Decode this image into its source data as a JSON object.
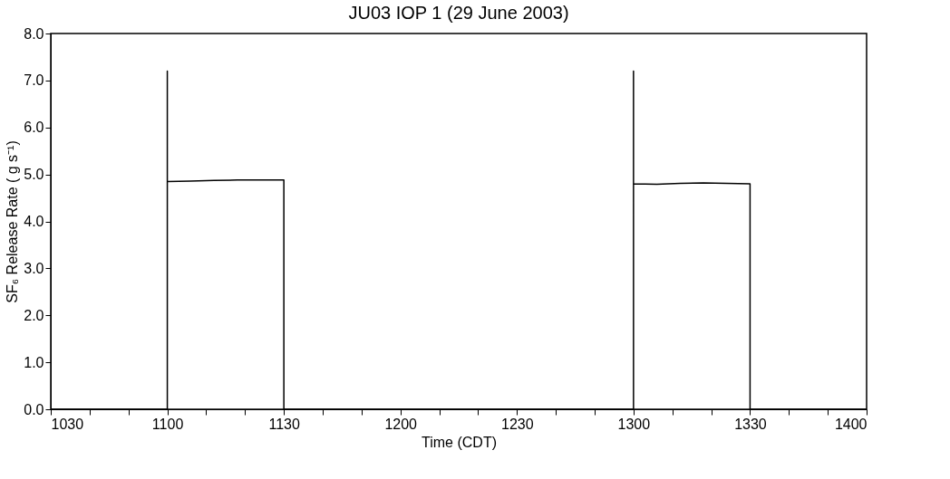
{
  "chart_data": {
    "type": "line",
    "title": "JU03 IOP 1 (29 June 2003)",
    "xlabel": "Time (CDT)",
    "ylabel": "SF₆ Release Rate ( g s⁻¹)",
    "x": [
      "2003-06-29T10:30",
      "2003-06-29T11:00",
      "2003-06-29T11:00",
      "2003-06-29T11:00",
      "2003-06-29T11:00",
      "2003-06-29T11:00",
      "2003-06-29T11:00",
      "2003-06-29T11:06",
      "2003-06-29T11:12",
      "2003-06-29T11:18",
      "2003-06-29T11:24",
      "2003-06-29T11:30",
      "2003-06-29T11:30",
      "2003-06-29T13:00",
      "2003-06-29T13:00",
      "2003-06-29T13:00",
      "2003-06-29T13:00",
      "2003-06-29T13:00",
      "2003-06-29T13:00",
      "2003-06-29T13:06",
      "2003-06-29T13:12",
      "2003-06-29T13:18",
      "2003-06-29T13:24",
      "2003-06-29T13:30",
      "2003-06-29T13:30",
      "2003-06-29T14:00"
    ],
    "series": [
      {
        "color": "#000000",
        "values": [
          0,
          0,
          7.2,
          4.1,
          5.6,
          4.3,
          4.85,
          4.86,
          4.87,
          4.88,
          4.88,
          4.88,
          0,
          0,
          7.2,
          4.15,
          5.3,
          4.4,
          4.8,
          4.79,
          4.81,
          4.82,
          4.81,
          4.8,
          0,
          0
        ]
      }
    ],
    "xlim": [
      "2003-06-29T10:30",
      "2003-06-29T14:00"
    ],
    "ylim": [
      0,
      8
    ],
    "xticks": [
      {
        "value": "2003-06-29T10:30",
        "label": "1030"
      },
      {
        "value": "2003-06-29T10:40",
        "label": null
      },
      {
        "value": "2003-06-29T10:50",
        "label": null
      },
      {
        "value": "2003-06-29T11:00",
        "label": "1100"
      },
      {
        "value": "2003-06-29T11:10",
        "label": null
      },
      {
        "value": "2003-06-29T11:20",
        "label": null
      },
      {
        "value": "2003-06-29T11:30",
        "label": "1130"
      },
      {
        "value": "2003-06-29T11:40",
        "label": null
      },
      {
        "value": "2003-06-29T11:50",
        "label": null
      },
      {
        "value": "2003-06-29T12:00",
        "label": "1200"
      },
      {
        "value": "2003-06-29T12:10",
        "label": null
      },
      {
        "value": "2003-06-29T12:20",
        "label": null
      },
      {
        "value": "2003-06-29T12:30",
        "label": "1230"
      },
      {
        "value": "2003-06-29T12:40",
        "label": null
      },
      {
        "value": "2003-06-29T12:50",
        "label": null
      },
      {
        "value": "2003-06-29T13:00",
        "label": "1300"
      },
      {
        "value": "2003-06-29T13:10",
        "label": null
      },
      {
        "value": "2003-06-29T13:20",
        "label": null
      },
      {
        "value": "2003-06-29T13:30",
        "label": "1330"
      },
      {
        "value": "2003-06-29T13:40",
        "label": null
      },
      {
        "value": "2003-06-29T13:50",
        "label": null
      },
      {
        "value": "2003-06-29T14:00",
        "label": "1400"
      }
    ],
    "yticks": [
      {
        "value": 0,
        "label": "0.0"
      },
      {
        "value": 1,
        "label": "1.0"
      },
      {
        "value": 2,
        "label": "2.0"
      },
      {
        "value": 3,
        "label": "3.0"
      },
      {
        "value": 4,
        "label": "4.0"
      },
      {
        "value": 5,
        "label": "5.0"
      },
      {
        "value": 6,
        "label": "6.0"
      },
      {
        "value": 7,
        "label": "7.0"
      },
      {
        "value": 8,
        "label": "8.0"
      }
    ],
    "grid": false,
    "marker": "none",
    "line_style": "solid"
  }
}
